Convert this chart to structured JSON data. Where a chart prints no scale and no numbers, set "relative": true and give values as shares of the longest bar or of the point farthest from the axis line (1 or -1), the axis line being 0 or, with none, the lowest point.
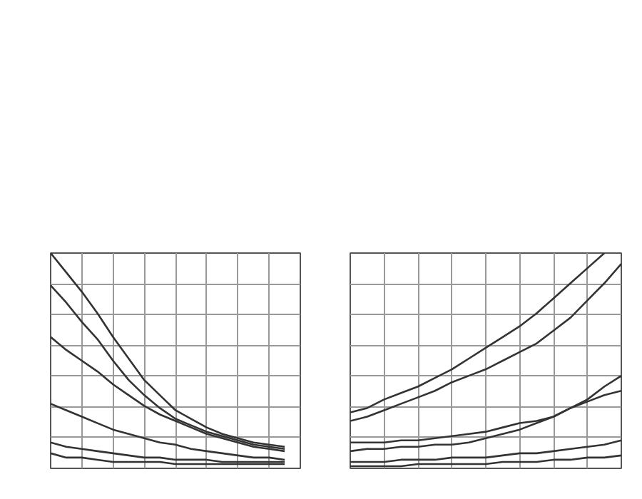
{
  "chart_data": [
    {
      "type": "line",
      "relative": true,
      "grid": true,
      "categories": [
        null,
        null,
        null,
        null,
        null,
        null,
        null,
        null,
        null,
        null,
        null,
        null,
        null,
        null,
        null,
        null,
        null
      ],
      "series": [
        {
          "color": "#333333",
          "values": [
            1.0,
            0.91,
            0.82,
            0.72,
            0.61,
            0.51,
            0.41,
            0.34,
            0.27,
            0.23,
            0.19,
            0.16,
            0.14,
            0.12,
            0.11,
            0.1,
            null
          ]
        },
        {
          "color": "#333333",
          "values": [
            0.85,
            0.77,
            0.68,
            0.6,
            0.5,
            0.41,
            0.34,
            0.28,
            0.23,
            0.2,
            0.17,
            0.15,
            0.13,
            0.11,
            0.1,
            0.09,
            null
          ]
        },
        {
          "color": "#333333",
          "values": [
            0.61,
            0.55,
            0.5,
            0.45,
            0.39,
            0.34,
            0.29,
            0.25,
            0.22,
            0.19,
            0.16,
            0.14,
            0.12,
            0.1,
            0.09,
            0.08,
            null
          ]
        },
        {
          "color": "#333333",
          "values": [
            0.3,
            0.27,
            0.24,
            0.21,
            0.18,
            0.16,
            0.14,
            0.12,
            0.11,
            0.09,
            0.08,
            0.07,
            0.06,
            0.05,
            0.05,
            0.04,
            null
          ]
        },
        {
          "color": "#333333",
          "values": [
            0.12,
            0.1,
            0.09,
            0.08,
            0.07,
            0.06,
            0.05,
            0.05,
            0.04,
            0.04,
            0.04,
            0.03,
            0.03,
            0.03,
            0.03,
            0.03,
            null
          ]
        },
        {
          "color": "#333333",
          "values": [
            0.07,
            0.05,
            0.05,
            0.04,
            0.03,
            0.03,
            0.03,
            0.03,
            0.02,
            0.02,
            0.02,
            0.02,
            0.02,
            0.02,
            0.02,
            0.02,
            null
          ]
        }
      ]
    },
    {
      "type": "line",
      "relative": true,
      "grid": true,
      "categories": [
        null,
        null,
        null,
        null,
        null,
        null,
        null,
        null,
        null,
        null,
        null,
        null,
        null,
        null,
        null,
        null,
        null
      ],
      "series": [
        {
          "color": "#333333",
          "values": [
            0.26,
            0.28,
            0.32,
            0.35,
            0.38,
            0.42,
            0.46,
            0.51,
            0.56,
            0.61,
            0.66,
            0.72,
            0.79,
            0.86,
            0.93,
            1.0,
            null
          ]
        },
        {
          "color": "#333333",
          "values": [
            0.22,
            0.24,
            0.27,
            0.3,
            0.33,
            0.36,
            0.4,
            0.43,
            0.46,
            0.5,
            0.54,
            0.58,
            0.64,
            0.7,
            0.78,
            0.86,
            0.95
          ]
        },
        {
          "color": "#333333",
          "values": [
            0.12,
            0.12,
            0.12,
            0.13,
            0.13,
            0.14,
            0.15,
            0.16,
            0.17,
            0.19,
            0.21,
            0.22,
            0.24,
            0.28,
            0.32,
            0.38,
            0.43
          ]
        },
        {
          "color": "#333333",
          "values": [
            0.08,
            0.09,
            0.09,
            0.1,
            0.1,
            0.11,
            0.11,
            0.12,
            0.14,
            0.16,
            0.18,
            0.21,
            0.24,
            0.28,
            0.31,
            0.34,
            0.36
          ]
        },
        {
          "color": "#333333",
          "values": [
            0.03,
            0.03,
            0.03,
            0.04,
            0.04,
            0.04,
            0.05,
            0.05,
            0.05,
            0.06,
            0.07,
            0.07,
            0.08,
            0.09,
            0.1,
            0.11,
            0.13
          ]
        },
        {
          "color": "#333333",
          "values": [
            0.01,
            0.01,
            0.01,
            0.01,
            0.02,
            0.02,
            0.02,
            0.02,
            0.02,
            0.03,
            0.03,
            0.03,
            0.04,
            0.04,
            0.05,
            0.05,
            0.06
          ]
        }
      ]
    }
  ]
}
